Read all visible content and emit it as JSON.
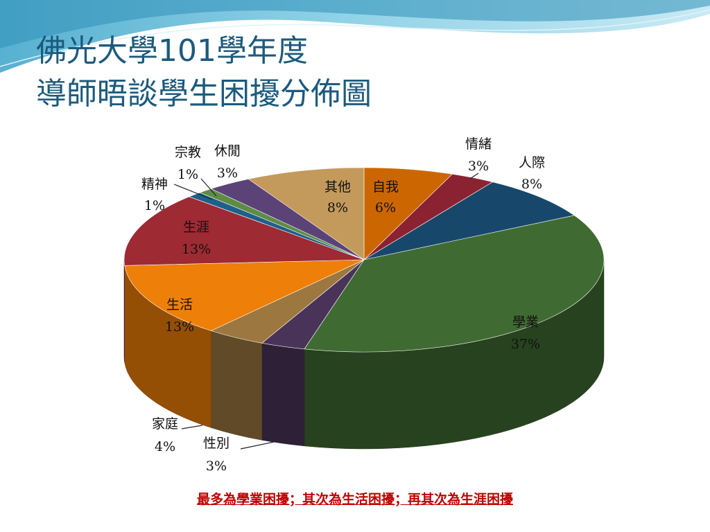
{
  "slide": {
    "title_line1": "佛光大學101學年度",
    "title_line2": "導師晤談學生困擾分佈圖",
    "footnote": "最多為學業困擾；其次為生活困擾；再其次為生涯困擾"
  },
  "colors": {
    "title": "#1c5a7d",
    "footnote": "#c00000",
    "background_wave": "#5fb9d6"
  },
  "chart_data": {
    "type": "pie",
    "style": "3d",
    "title": "",
    "slices": [
      {
        "label": "自我",
        "value": 6,
        "text": "6%",
        "color": "#cc6600"
      },
      {
        "label": "情緒",
        "value": 3,
        "text": "3%",
        "color": "#8b2232"
      },
      {
        "label": "人際",
        "value": 8,
        "text": "8%",
        "color": "#17486b"
      },
      {
        "label": "學業",
        "value": 37,
        "text": "37%",
        "color": "#3f6b32"
      },
      {
        "label": "性別",
        "value": 3,
        "text": "3%",
        "color": "#4a3358"
      },
      {
        "label": "家庭",
        "value": 4,
        "text": "4%",
        "color": "#9c7840"
      },
      {
        "label": "生活",
        "value": 13,
        "text": "13%",
        "color": "#ee7f08"
      },
      {
        "label": "生涯",
        "value": 13,
        "text": "13%",
        "color": "#9e2a33"
      },
      {
        "label": "精神",
        "value": 1,
        "text": "1%",
        "color": "#1f5f8b"
      },
      {
        "label": "宗教",
        "value": 1,
        "text": "1%",
        "color": "#5d8c45"
      },
      {
        "label": "休閒",
        "value": 3,
        "text": "3%",
        "color": "#5b4378"
      },
      {
        "label": "其他",
        "value": 8,
        "text": "8%",
        "color": "#c49a5c"
      }
    ]
  }
}
